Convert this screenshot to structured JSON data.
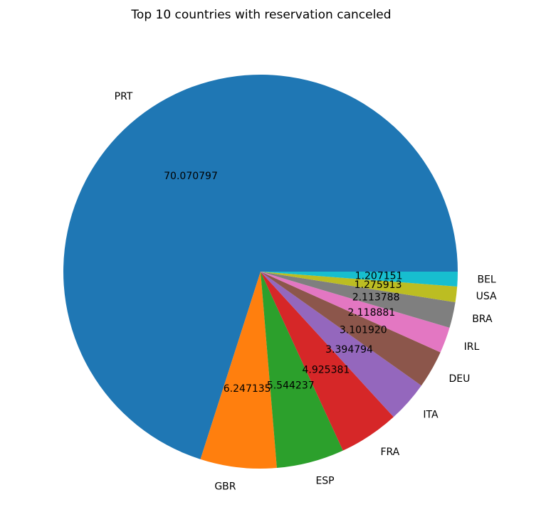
{
  "chart_data": {
    "type": "pie",
    "title": "Top 10 countries with reservation canceled",
    "categories": [
      "PRT",
      "GBR",
      "ESP",
      "FRA",
      "ITA",
      "DEU",
      "IRL",
      "BRA",
      "USA",
      "BEL"
    ],
    "values": [
      70.070797,
      6.247135,
      5.544237,
      4.925381,
      3.394794,
      3.10192,
      2.118881,
      2.113788,
      1.275913,
      1.207151
    ],
    "value_labels": [
      "70.070797",
      "6.247135",
      "5.544237",
      "4.925381",
      "3.394794",
      "3.101920",
      "2.118881",
      "2.113788",
      "1.275913",
      "1.207151"
    ],
    "colors": [
      "#1f77b4",
      "#ff7f0e",
      "#2ca02c",
      "#d62728",
      "#9467bd",
      "#8c564b",
      "#e377c2",
      "#7f7f7f",
      "#bcbd22",
      "#17becf"
    ],
    "start_angle": 0,
    "direction": "counterclockwise",
    "legend": "none"
  }
}
